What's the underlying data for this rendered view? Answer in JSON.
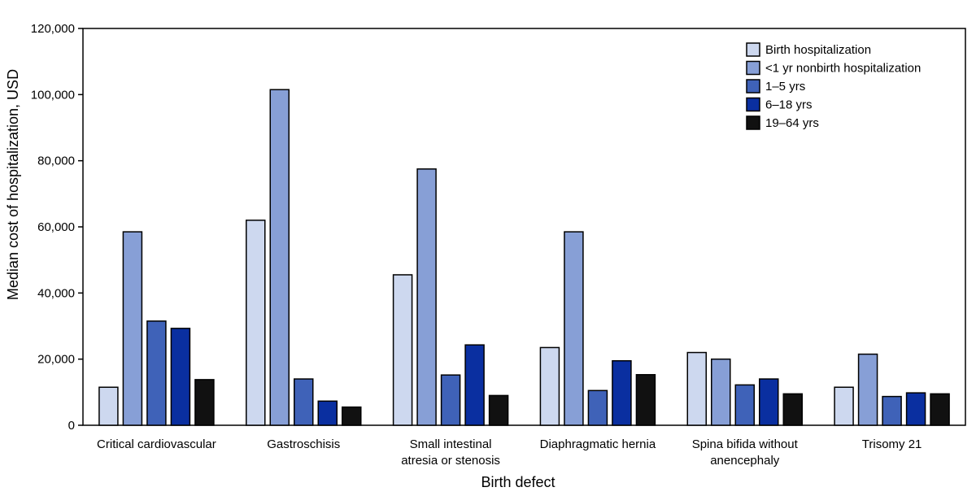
{
  "chart_data": {
    "type": "bar",
    "title": "",
    "xlabel": "Birth defect",
    "ylabel": "Median cost of hospitalization, USD",
    "ylim": [
      0,
      120000
    ],
    "yticks": [
      0,
      20000,
      40000,
      60000,
      80000,
      100000,
      120000
    ],
    "ytick_labels": [
      "0",
      "20,000",
      "40,000",
      "60,000",
      "80,000",
      "100,000",
      "120,000"
    ],
    "grid": false,
    "legend_position": "top-right",
    "categories": [
      [
        "Critical cardiovascular"
      ],
      [
        "Gastroschisis"
      ],
      [
        "Small intestinal",
        "atresia or stenosis"
      ],
      [
        "Diaphragmatic hernia"
      ],
      [
        "Spina bifida without",
        "anencephaly"
      ],
      [
        "Trisomy 21"
      ]
    ],
    "series": [
      {
        "name": "Birth hospitalization",
        "color": "#cdd8ef",
        "values": [
          11500,
          62000,
          45500,
          23500,
          22000,
          11500
        ]
      },
      {
        "name": "<1 yr nonbirth hospitalization",
        "color": "#879fd6",
        "values": [
          58500,
          101500,
          77500,
          58500,
          20000,
          21500
        ]
      },
      {
        "name": "1–5 yrs",
        "color": "#3f62b8",
        "values": [
          31500,
          14000,
          15200,
          10500,
          12200,
          8700
        ]
      },
      {
        "name": "6–18 yrs",
        "color": "#0a2fa0",
        "values": [
          29300,
          7300,
          24300,
          19500,
          14000,
          9800
        ]
      },
      {
        "name": "19–64 yrs",
        "color": "#111111",
        "values": [
          13800,
          5500,
          9000,
          15300,
          9500,
          9500
        ]
      }
    ]
  }
}
